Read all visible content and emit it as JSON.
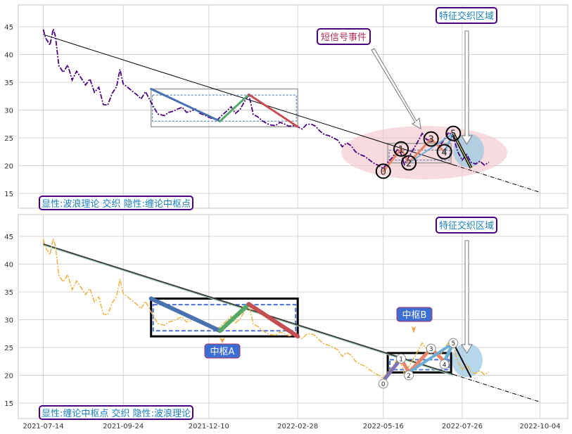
{
  "x_tick_labels": [
    "2021-07-14",
    "2021-09-24",
    "2021-12-10",
    "2022-02-28",
    "2022-05-16",
    "2022-07-26",
    "2022-10-04"
  ],
  "y_tick_labels": [
    "15",
    "20",
    "25",
    "30",
    "35",
    "40",
    "45"
  ],
  "top_panel": {
    "caption": "显性:波浪理论 交织 隐性:缠论中枢点",
    "annotation_signal": "短信号事件",
    "annotation_zone": "特征交织区域",
    "wave_labels": [
      "0",
      "1",
      "2",
      "3",
      "4",
      "5"
    ]
  },
  "bottom_panel": {
    "caption": "显性:缠论中枢点 交织 隐性:波浪理论",
    "annotation_zone": "特征交织区域",
    "pivot_a_label": "中枢A",
    "pivot_b_label": "中枢B",
    "wave_labels": [
      "0",
      "1",
      "2",
      "3",
      "4",
      "5"
    ]
  },
  "colors": {
    "price_top": "#4b0082",
    "price_bottom": "#f0b040",
    "seg_blue": "#4a72b0",
    "seg_green": "#55a868",
    "seg_red": "#c44e52",
    "seg_salmon": "#e8856a",
    "seg_lightblue": "#6aaed6",
    "seg_purple": "#8172b2",
    "caption_text": "#1a7fc0",
    "caption_border": "#4b0082",
    "label_box": "#3b6fd4"
  },
  "chart_data": [
    {
      "type": "line",
      "title": "",
      "xlabel": "",
      "ylabel": "",
      "ylim": [
        12.5,
        49
      ],
      "grid": true,
      "x_axis": "date",
      "series": [
        {
          "x": [
            "2021-07-14",
            "2021-07-16",
            "2021-07-20",
            "2021-07-23",
            "2021-07-25",
            "2021-07-28",
            "2021-08-01",
            "2021-08-05",
            "2021-08-09",
            "2021-08-13",
            "2021-08-17",
            "2021-08-21",
            "2021-08-25",
            "2021-08-29",
            "2021-09-02",
            "2021-09-06",
            "2021-09-10",
            "2021-09-14",
            "2021-09-18",
            "2021-09-21",
            "2021-09-24",
            "2021-09-28",
            "2021-10-02",
            "2021-10-06",
            "2021-10-10",
            "2021-10-14",
            "2021-10-19",
            "2021-10-25",
            "2021-10-31",
            "2021-11-04",
            "2021-11-08",
            "2021-11-12",
            "2021-11-16",
            "2021-11-20",
            "2021-11-24",
            "2021-11-28",
            "2021-12-02",
            "2021-12-06",
            "2021-12-10",
            "2021-12-14",
            "2021-12-18",
            "2021-12-22",
            "2021-12-26",
            "2021-12-30",
            "2022-01-03",
            "2022-01-07",
            "2022-01-11",
            "2022-01-15",
            "2022-01-19",
            "2022-01-23",
            "2022-01-27",
            "2022-01-31",
            "2022-02-04",
            "2022-02-08",
            "2022-02-12",
            "2022-02-16",
            "2022-02-20",
            "2022-02-24",
            "2022-02-28",
            "2022-03-04",
            "2022-03-08",
            "2022-03-12",
            "2022-03-16",
            "2022-03-20",
            "2022-03-24",
            "2022-03-28",
            "2022-04-01",
            "2022-04-05",
            "2022-04-09",
            "2022-04-13",
            "2022-04-17",
            "2022-04-21",
            "2022-04-25",
            "2022-04-29",
            "2022-05-03",
            "2022-05-07",
            "2022-05-11",
            "2022-05-16",
            "2022-05-20",
            "2022-05-24",
            "2022-05-29",
            "2022-06-01",
            "2022-06-04",
            "2022-06-08",
            "2022-06-12",
            "2022-06-16",
            "2022-06-20",
            "2022-06-24",
            "2022-06-28",
            "2022-07-02",
            "2022-07-06",
            "2022-07-10",
            "2022-07-14",
            "2022-07-18",
            "2022-07-22",
            "2022-07-26",
            "2022-07-30",
            "2022-08-03",
            "2022-08-07",
            "2022-08-11",
            "2022-08-15",
            "2022-08-19"
          ],
          "y": [
            44.5,
            43.0,
            41.7,
            44.6,
            43.2,
            38.0,
            36.8,
            38.1,
            35.4,
            37.0,
            35.8,
            34.5,
            35.6,
            33.2,
            34.1,
            31.0,
            30.9,
            33.0,
            34.2,
            37.3,
            34.7,
            34.1,
            33.4,
            32.8,
            32.0,
            33.3,
            31.4,
            29.3,
            29.0,
            29.6,
            29.8,
            30.2,
            30.5,
            29.6,
            29.8,
            30.2,
            29.4,
            29.1,
            28.7,
            28.4,
            28.3,
            29.1,
            29.8,
            30.6,
            29.4,
            30.1,
            31.5,
            32.8,
            29.2,
            28.8,
            28.1,
            27.6,
            27.3,
            27.2,
            27.8,
            27.5,
            27.1,
            27.2,
            27.0,
            26.6,
            27.4,
            27.5,
            27.1,
            26.2,
            25.6,
            25.4,
            25.0,
            24.6,
            23.4,
            24.1,
            23.6,
            22.5,
            22.0,
            21.7,
            21.1,
            20.5,
            20.1,
            19.5,
            20.6,
            21.4,
            23.0,
            22.1,
            20.2,
            21.6,
            22.9,
            24.3,
            25.8,
            24.7,
            24.5,
            24.0,
            23.6,
            24.8,
            26.0,
            25.2,
            22.5,
            21.0,
            22.0,
            20.6,
            20.3,
            20.8,
            20.1,
            20.6
          ]
        }
      ],
      "trendline": {
        "start": [
          "2021-07-14",
          43.6
        ],
        "end": [
          "2022-10-04",
          15.2
        ]
      },
      "wave_points": {
        "labels": [
          "0",
          "1",
          "2",
          "3",
          "4",
          "5"
        ],
        "x": [
          "2022-05-16",
          "2022-06-01",
          "2022-06-08",
          "2022-06-28",
          "2022-07-10",
          "2022-07-18"
        ],
        "y": [
          19.0,
          23.0,
          20.5,
          24.8,
          22.5,
          25.8
        ]
      },
      "pivot_zone_a": {
        "x": [
          "2021-10-19",
          "2022-02-28"
        ],
        "y": [
          27.0,
          33.8
        ],
        "inner_y": [
          28.0,
          32.7
        ]
      },
      "pivot_zone_b": {
        "x": [
          "2022-05-20",
          "2022-07-16"
        ],
        "y": [
          20.5,
          24.0
        ],
        "inner_y": [
          21.0,
          22.8
        ]
      }
    },
    {
      "type": "line",
      "title": "",
      "xlabel": "",
      "ylabel": "",
      "ylim": [
        12.5,
        49
      ],
      "grid": true,
      "x_axis": "date",
      "series": [
        {
          "x": [
            "2021-07-14",
            "2021-07-16",
            "2021-07-20",
            "2021-07-23",
            "2021-07-25",
            "2021-07-28",
            "2021-08-01",
            "2021-08-05",
            "2021-08-09",
            "2021-08-13",
            "2021-08-17",
            "2021-08-21",
            "2021-08-25",
            "2021-08-29",
            "2021-09-02",
            "2021-09-06",
            "2021-09-10",
            "2021-09-14",
            "2021-09-18",
            "2021-09-21",
            "2021-09-24",
            "2021-09-28",
            "2021-10-02",
            "2021-10-06",
            "2021-10-10",
            "2021-10-14",
            "2021-10-19",
            "2021-10-25",
            "2021-10-31",
            "2021-11-04",
            "2021-11-08",
            "2021-11-12",
            "2021-11-16",
            "2021-11-20",
            "2021-11-24",
            "2021-11-28",
            "2021-12-02",
            "2021-12-06",
            "2021-12-10",
            "2021-12-14",
            "2021-12-18",
            "2021-12-22",
            "2021-12-26",
            "2021-12-30",
            "2022-01-03",
            "2022-01-07",
            "2022-01-11",
            "2022-01-15",
            "2022-01-19",
            "2022-01-23",
            "2022-01-27",
            "2022-01-31",
            "2022-02-04",
            "2022-02-08",
            "2022-02-12",
            "2022-02-16",
            "2022-02-20",
            "2022-02-24",
            "2022-02-28",
            "2022-03-04",
            "2022-03-08",
            "2022-03-12",
            "2022-03-16",
            "2022-03-20",
            "2022-03-24",
            "2022-03-28",
            "2022-04-01",
            "2022-04-05",
            "2022-04-09",
            "2022-04-13",
            "2022-04-17",
            "2022-04-21",
            "2022-04-25",
            "2022-04-29",
            "2022-05-03",
            "2022-05-07",
            "2022-05-11",
            "2022-05-16",
            "2022-05-20",
            "2022-05-24",
            "2022-05-29",
            "2022-06-01",
            "2022-06-04",
            "2022-06-08",
            "2022-06-12",
            "2022-06-16",
            "2022-06-20",
            "2022-06-24",
            "2022-06-28",
            "2022-07-02",
            "2022-07-06",
            "2022-07-10",
            "2022-07-14",
            "2022-07-18",
            "2022-07-22",
            "2022-07-26",
            "2022-07-30",
            "2022-08-03",
            "2022-08-07",
            "2022-08-11",
            "2022-08-15",
            "2022-08-19"
          ],
          "y": [
            44.5,
            43.0,
            41.7,
            44.6,
            43.2,
            38.0,
            36.8,
            38.1,
            35.4,
            37.0,
            35.8,
            34.5,
            35.6,
            33.2,
            34.1,
            31.0,
            30.9,
            33.0,
            34.2,
            37.3,
            34.7,
            34.1,
            33.4,
            32.8,
            32.0,
            33.3,
            31.4,
            29.3,
            29.0,
            29.6,
            29.8,
            30.2,
            30.5,
            29.6,
            29.8,
            30.2,
            29.4,
            29.1,
            28.7,
            28.4,
            28.3,
            29.1,
            29.8,
            30.6,
            29.4,
            30.1,
            31.5,
            32.8,
            29.2,
            28.8,
            28.1,
            27.6,
            27.3,
            27.2,
            27.8,
            27.5,
            27.1,
            27.2,
            27.0,
            26.6,
            27.4,
            27.5,
            27.1,
            26.2,
            25.6,
            25.4,
            25.0,
            24.6,
            23.4,
            24.1,
            23.6,
            22.5,
            22.0,
            21.7,
            21.1,
            20.5,
            20.1,
            19.5,
            20.6,
            21.4,
            23.0,
            22.1,
            20.2,
            21.6,
            22.9,
            24.3,
            25.8,
            24.7,
            24.5,
            24.0,
            23.6,
            24.8,
            26.0,
            25.2,
            22.5,
            21.0,
            22.0,
            20.6,
            20.3,
            20.8,
            20.1,
            20.6
          ]
        }
      ],
      "trendline": {
        "start": [
          "2021-07-14",
          43.6
        ],
        "end": [
          "2022-10-04",
          15.2
        ]
      },
      "wave_points": {
        "labels": [
          "0",
          "1",
          "2",
          "3",
          "4",
          "5"
        ],
        "x": [
          "2022-05-16",
          "2022-06-01",
          "2022-06-08",
          "2022-06-28",
          "2022-07-10",
          "2022-07-18"
        ],
        "y": [
          19.0,
          23.0,
          20.5,
          24.8,
          22.5,
          25.8
        ]
      },
      "pivot_zone_a": {
        "x": [
          "2021-10-19",
          "2022-02-28"
        ],
        "y": [
          27.0,
          33.8
        ],
        "inner_y": [
          28.0,
          32.7
        ]
      },
      "pivot_zone_b": {
        "x": [
          "2022-05-20",
          "2022-07-16"
        ],
        "y": [
          20.5,
          24.0
        ],
        "inner_y": [
          21.0,
          22.8
        ]
      }
    }
  ]
}
